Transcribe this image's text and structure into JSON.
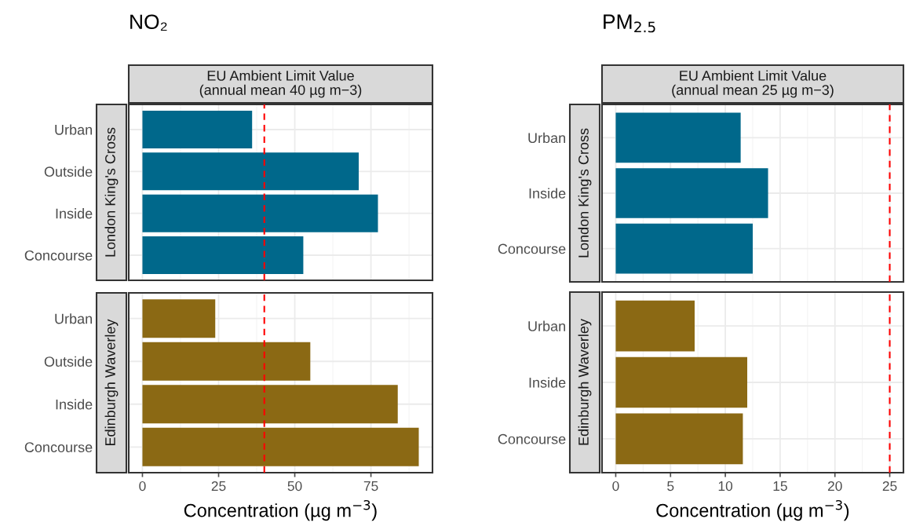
{
  "chart_data": [
    {
      "type": "bar",
      "orientation": "horizontal",
      "title": "NO₂",
      "subtitle": "EU Ambient Limit Value\n(annual mean 40 µg m−3)",
      "ylabel": "London King's Cross",
      "categories": [
        "Urban",
        "Outside",
        "Inside",
        "Concourse"
      ],
      "series": [
        {
          "color": "#00688b",
          "values": [
            36.0,
            71.0,
            77.3,
            52.8
          ]
        }
      ],
      "xlim": [
        -4.5,
        95.2
      ],
      "xticks": [
        0,
        25,
        50,
        75
      ],
      "tick_labels": "y",
      "grid": true,
      "ref_lines": [
        {
          "axis": "x",
          "value": 40,
          "color": "#ff0000",
          "line_style": "dashed"
        }
      ]
    },
    {
      "type": "bar",
      "orientation": "horizontal",
      "xlabel": "Concentration (µg m$^{−3}$)",
      "ylabel": "Edinburgh Waverley",
      "categories": [
        "Urban",
        "Outside",
        "Inside",
        "Concourse"
      ],
      "series": [
        {
          "color": "#8b6914",
          "values": [
            23.9,
            55.1,
            83.8,
            90.7
          ]
        }
      ],
      "xlim": [
        -4.5,
        95.2
      ],
      "xticks": [
        0,
        25,
        50,
        75
      ],
      "grid": true,
      "ref_lines": [
        {
          "axis": "x",
          "value": 40,
          "color": "#ff0000",
          "line_style": "dashed"
        }
      ]
    },
    {
      "type": "bar",
      "orientation": "horizontal",
      "title": "PM$_{2.5}$",
      "subtitle": "EU Ambient Limit Value\n(annual mean 25 µg m−3)",
      "ylabel": "London King's Cross",
      "categories": [
        "Urban",
        "Inside",
        "Concourse"
      ],
      "series": [
        {
          "color": "#00688b",
          "values": [
            11.4,
            13.9,
            12.5
          ]
        }
      ],
      "xlim": [
        -1.25,
        26.25
      ],
      "xticks": [
        0,
        5,
        10,
        15,
        20,
        25
      ],
      "tick_labels": "y",
      "grid": true,
      "ref_lines": [
        {
          "axis": "x",
          "value": 25,
          "color": "#ff0000",
          "line_style": "dashed"
        }
      ]
    },
    {
      "type": "bar",
      "orientation": "horizontal",
      "xlabel": "Concentration (µg m$^{−3}$)",
      "ylabel": "Edinburgh Waverley",
      "categories": [
        "Urban",
        "Inside",
        "Concourse"
      ],
      "series": [
        {
          "color": "#8b6914",
          "values": [
            7.2,
            12.0,
            11.6
          ]
        }
      ],
      "xlim": [
        -1.25,
        26.25
      ],
      "xticks": [
        0,
        5,
        10,
        15,
        20,
        25
      ],
      "grid": true,
      "ref_lines": [
        {
          "axis": "x",
          "value": 25,
          "color": "#ff0000",
          "line_style": "dashed"
        }
      ]
    }
  ]
}
